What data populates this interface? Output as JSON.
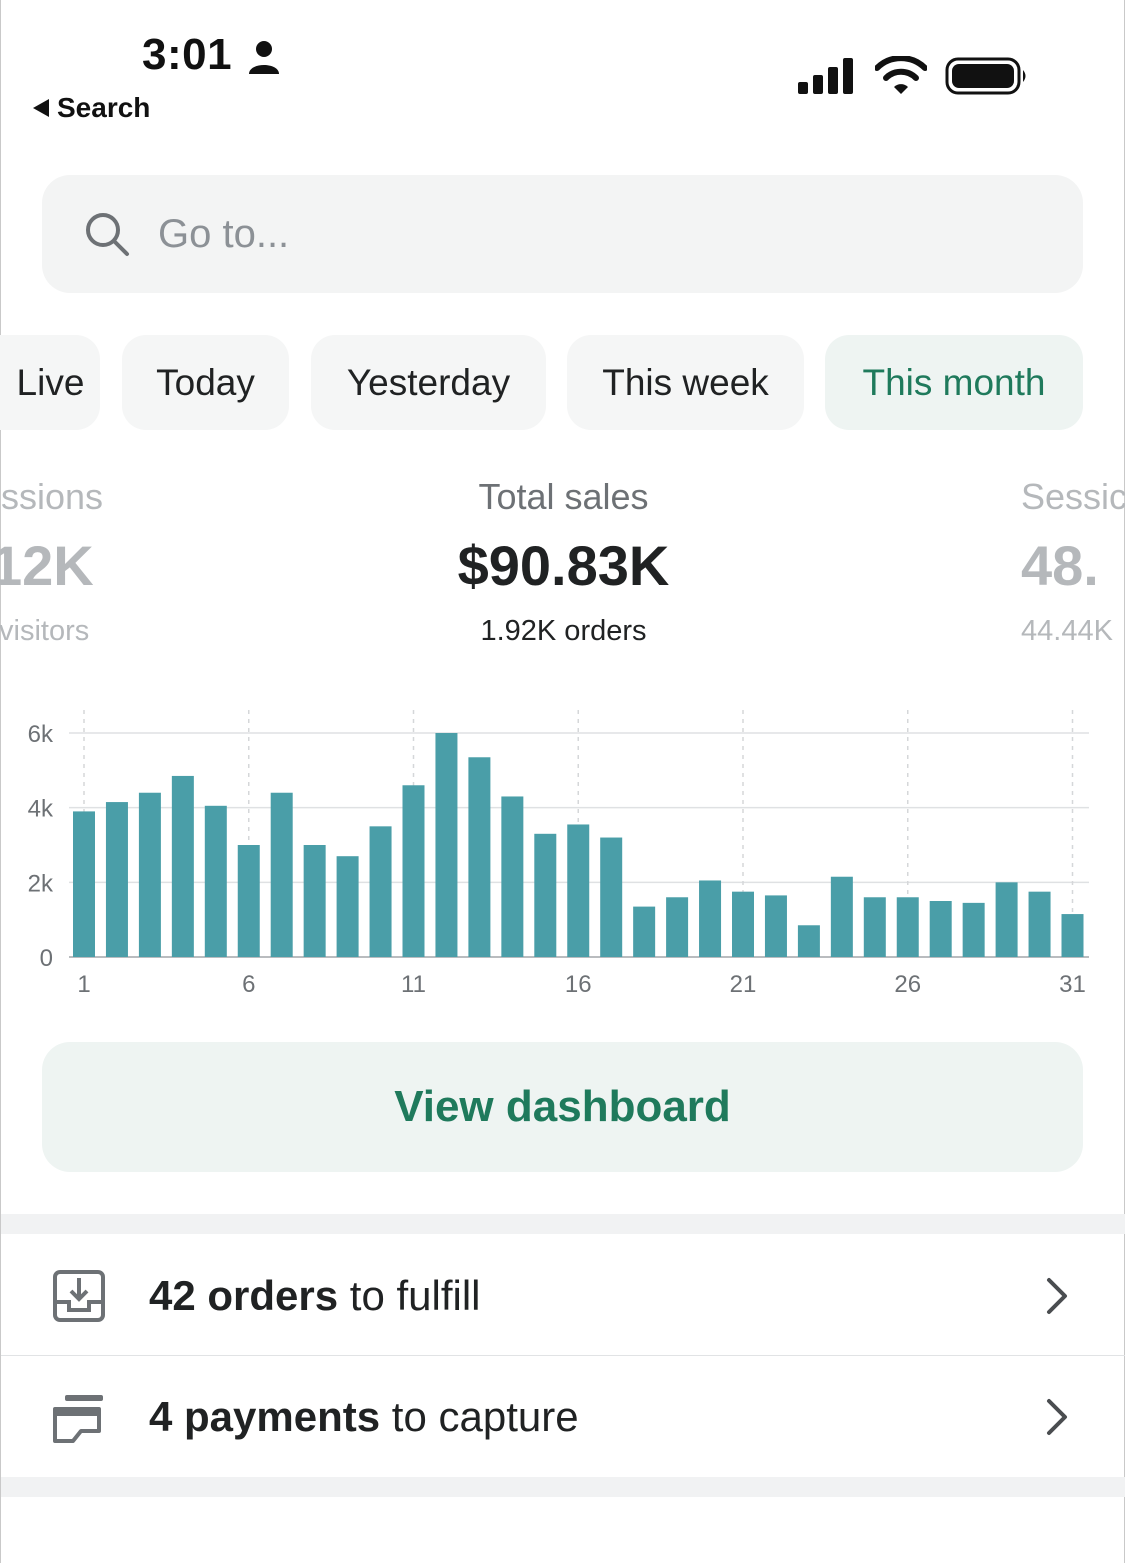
{
  "status_bar": {
    "time": "3:01",
    "back_label": "Search"
  },
  "search": {
    "placeholder": "Go to..."
  },
  "tabs": [
    {
      "label": "Live",
      "active": false
    },
    {
      "label": "Today",
      "active": false
    },
    {
      "label": "Yesterday",
      "active": false
    },
    {
      "label": "This week",
      "active": false
    },
    {
      "label": "This month",
      "active": true
    }
  ],
  "metrics": {
    "left": {
      "label": "ssions",
      "value": "12K",
      "sub": "visitors"
    },
    "center": {
      "label": "Total sales",
      "value": "$90.83K",
      "sub": "1.92K orders"
    },
    "right": {
      "label": "Sessic",
      "value": "48.",
      "sub": "44.44K"
    }
  },
  "chart_data": {
    "type": "bar",
    "x": [
      1,
      2,
      3,
      4,
      5,
      6,
      7,
      8,
      9,
      10,
      11,
      12,
      13,
      14,
      15,
      16,
      17,
      18,
      19,
      20,
      21,
      22,
      23,
      24,
      25,
      26,
      27,
      28,
      29,
      30,
      31
    ],
    "values": [
      3900,
      4150,
      4400,
      4850,
      4050,
      3000,
      4400,
      3000,
      2700,
      3500,
      4600,
      6000,
      5350,
      4300,
      3300,
      3550,
      3200,
      1350,
      1600,
      2050,
      1750,
      1650,
      850,
      2150,
      1600,
      1600,
      1500,
      1450,
      2000,
      1750,
      1150
    ],
    "x_tick_labels": [
      "1",
      "6",
      "11",
      "16",
      "21",
      "26",
      "31"
    ],
    "y_tick_labels": [
      "0",
      "2k",
      "4k",
      "6k"
    ],
    "ylim": [
      0,
      6000
    ],
    "bar_color": "#4a9ea8",
    "title": "",
    "xlabel": "",
    "ylabel": ""
  },
  "dashboard_button": {
    "label": "View dashboard"
  },
  "tasks": [
    {
      "bold": "42 orders",
      "rest": " to fulfill",
      "icon": "inbox-download-icon"
    },
    {
      "bold": "4 payments",
      "rest": " to capture",
      "icon": "credit-card-icon"
    }
  ],
  "colors": {
    "accent": "#1f7a5c",
    "accent_bg": "#eef4f2",
    "bar": "#4a9ea8"
  }
}
